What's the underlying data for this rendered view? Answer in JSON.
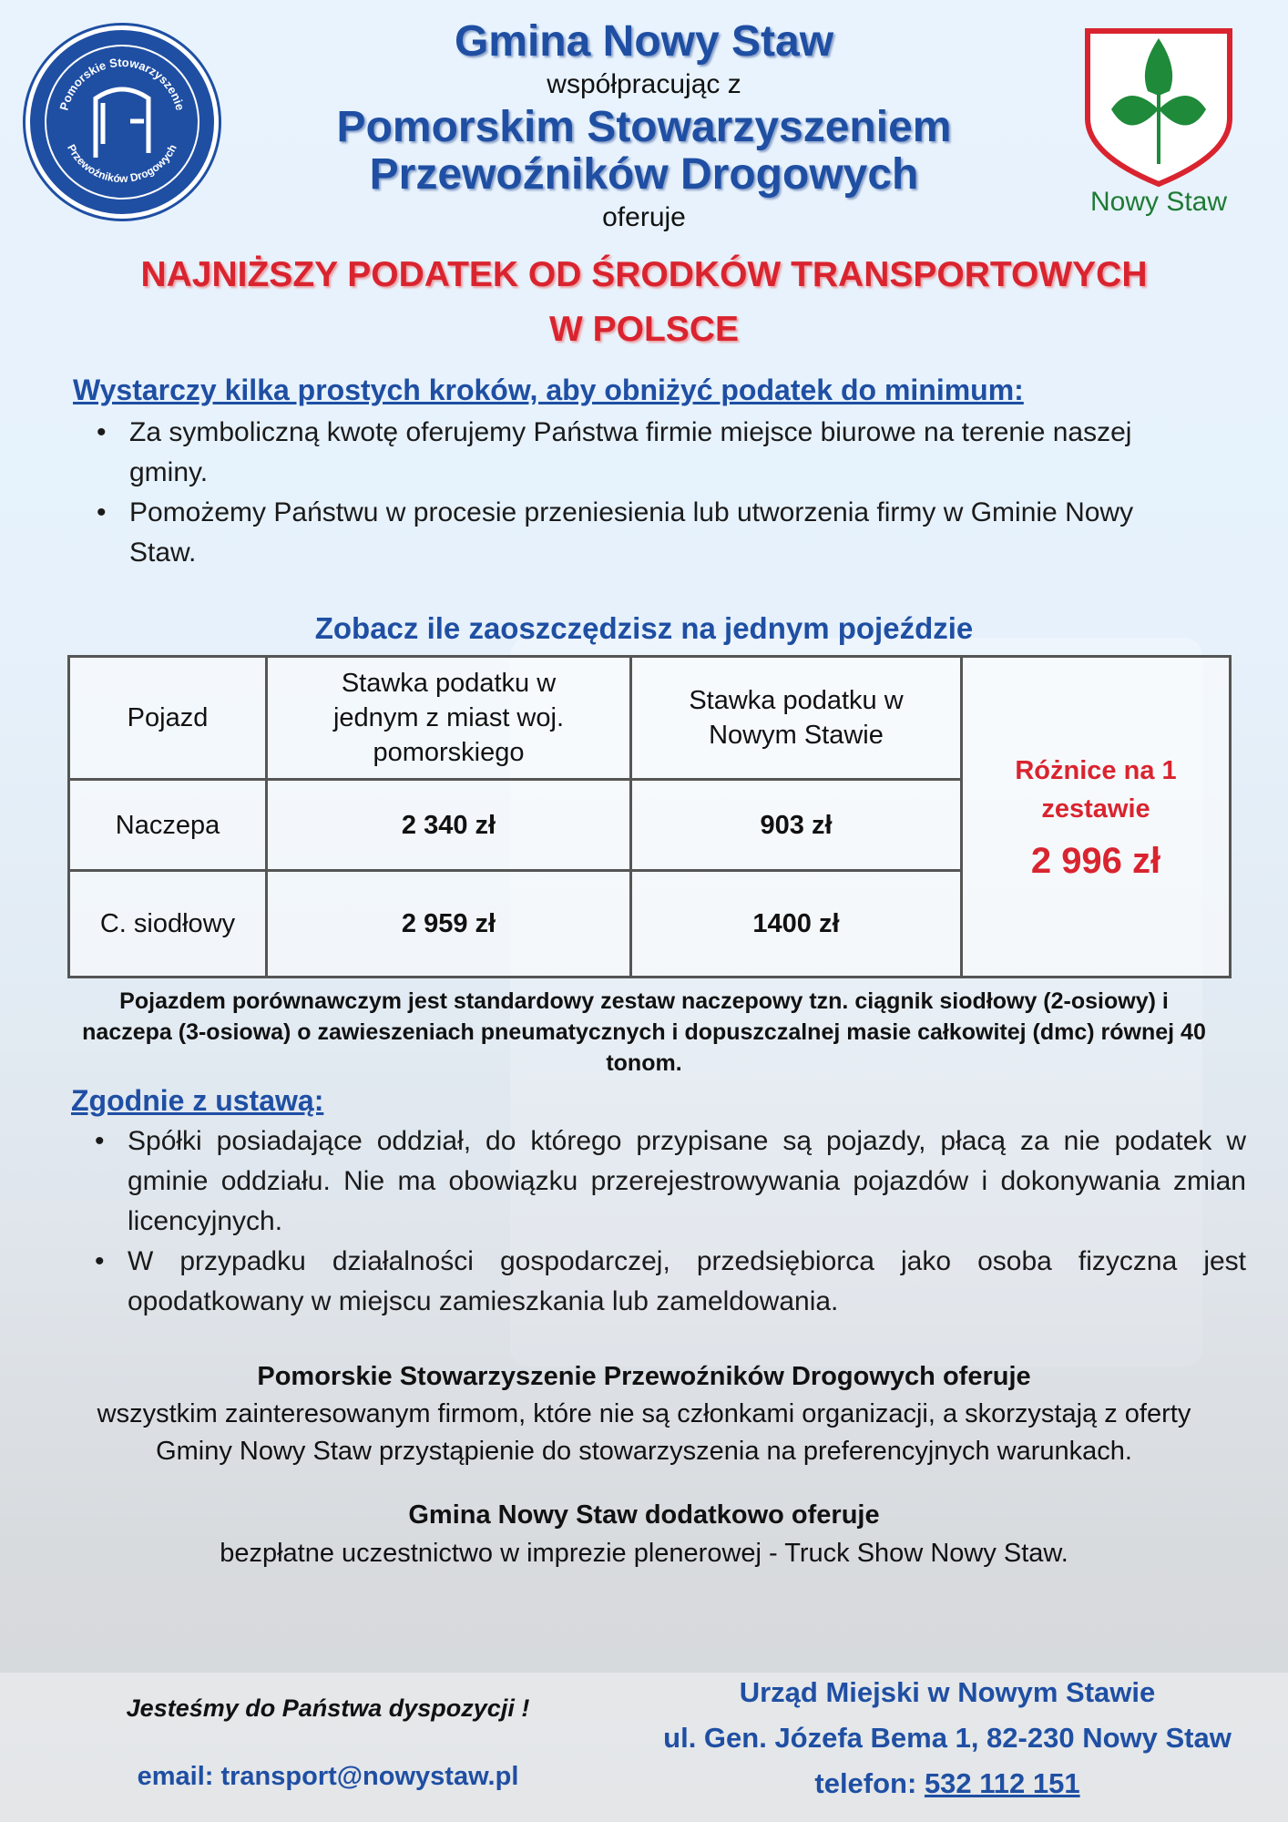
{
  "header": {
    "title": "Gmina Nowy Staw",
    "line2": "współpracując z",
    "partner_line1": "Pomorskim Stowarzyszeniem",
    "partner_line2": "Przewoźników Drogowych",
    "line5": "oferuje"
  },
  "logos": {
    "left_text_top": "Pomorskie Stowarzyszenie",
    "left_text_bottom": "Przewoźników Drogowych",
    "right_caption": "Nowy Staw"
  },
  "headline": {
    "line1": "NAJNIŻSZY PODATEK OD ŚRODKÓW TRANSPORTOWYCH",
    "line2": "W POLSCE"
  },
  "steps": {
    "heading": "Wystarczy kilka prostych kroków, aby obniżyć podatek do minimum:",
    "items": [
      "Za symboliczną kwotę oferujemy Państwa firmie miejsce biurowe na terenie naszej gminy.",
      "Pomożemy Państwu w procesie przeniesienia lub utworzenia firmy w Gminie Nowy Staw."
    ]
  },
  "table": {
    "title": "Zobacz ile zaoszczędzisz na jednym pojeździe",
    "headers": [
      "Pojazd",
      "Stawka podatku w jednym z miast woj. pomorskiego",
      "Stawka podatku w Nowym Stawie"
    ],
    "rows": [
      {
        "vehicle": "Naczepa",
        "pomorskie": "2 340 zł",
        "nowy_staw": "903 zł"
      },
      {
        "vehicle": "C. siodłowy",
        "pomorskie": "2 959 zł",
        "nowy_staw": "1400 zł"
      }
    ],
    "difference_label": "Różnice na 1 zestawie",
    "difference_value": "2 996 zł"
  },
  "note": "Pojazdem  porównawczym jest standardowy zestaw naczepowy tzn. ciągnik siodłowy (2-osiowy) i naczepa (3-osiowa) o zawieszeniach pneumatycznych i dopuszczalnej masie całkowitej (dmc) równej 40 tonom.",
  "law": {
    "heading": "Zgodnie z ustawą:",
    "items": [
      "Spółki posiadające oddział, do którego przypisane są pojazdy, płacą za nie podatek w gminie oddziału. Nie ma obowiązku przerejestrowywania pojazdów i dokonywania zmian licencyjnych.",
      "W przypadku działalności gospodarczej, przedsiębiorca jako osoba fizyczna jest opodatkowany w miejscu zamieszkania lub zameldowania."
    ]
  },
  "offer1": {
    "title": "Pomorskie Stowarzyszenie Przewoźników Drogowych oferuje",
    "body": "wszystkim zainteresowanym firmom, które nie są członkami organizacji, a skorzystają z oferty Gminy Nowy Staw przystąpienie do stowarzyszenia na preferencyjnych warunkach."
  },
  "offer2": {
    "title": "Gmina Nowy Staw dodatkowo oferuje",
    "body": "bezpłatne uczestnictwo w imprezie plenerowej - Truck Show Nowy Staw."
  },
  "footer": {
    "tagline": "Jesteśmy do Państwa dyspozycji !",
    "email_label": "email:",
    "email": "transport@nowystaw.pl",
    "office": "Urząd Miejski w Nowym Stawie",
    "address": "ul. Gen. Józefa Bema 1, 82-230 Nowy Staw",
    "phone_label": "telefon:",
    "phone": "532 112 151"
  },
  "colors": {
    "brand_blue": "#1f4fa3",
    "accent_red": "#d9242f",
    "shield_green": "#1e8a3a"
  }
}
